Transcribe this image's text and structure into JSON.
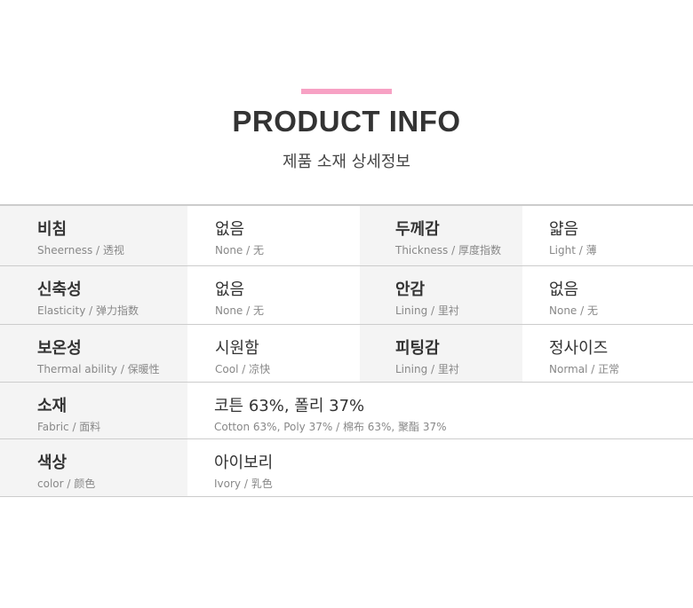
{
  "header": {
    "title": "PRODUCT INFO",
    "subtitle": "제품 소재 상세정보",
    "accent": "#f7a1c4"
  },
  "rows": [
    {
      "cells": [
        {
          "ko": "비침",
          "en": "Sheerness / 透视"
        },
        {
          "ko": "없음",
          "en": "None / 无"
        },
        {
          "ko": "두께감",
          "en": "Thickness / 厚度指数"
        },
        {
          "ko": "얇음",
          "en": "Light / 薄"
        }
      ]
    },
    {
      "cells": [
        {
          "ko": "신축성",
          "en": "Elasticity / 弹力指数"
        },
        {
          "ko": "없음",
          "en": "None / 无"
        },
        {
          "ko": "안감",
          "en": "Lining / 里衬"
        },
        {
          "ko": "없음",
          "en": "None / 无"
        }
      ]
    },
    {
      "cells": [
        {
          "ko": "보온성",
          "en": "Thermal ability / 保暖性"
        },
        {
          "ko": "시원함",
          "en": "Cool / 凉快"
        },
        {
          "ko": "피팅감",
          "en": "Lining / 里衬"
        },
        {
          "ko": "정사이즈",
          "en": "Normal / 正常"
        }
      ]
    },
    {
      "cells": [
        {
          "ko": "소재",
          "en": "Fabric / 面料"
        },
        {
          "ko": "코튼 63%, 폴리 37%",
          "en": "Cotton 63%, Poly 37% / 棉布 63%, 聚酯 37%"
        }
      ]
    },
    {
      "cells": [
        {
          "ko": "색상",
          "en": "color / 颜色"
        },
        {
          "ko": "아이보리",
          "en": "Ivory / 乳色"
        }
      ]
    }
  ]
}
